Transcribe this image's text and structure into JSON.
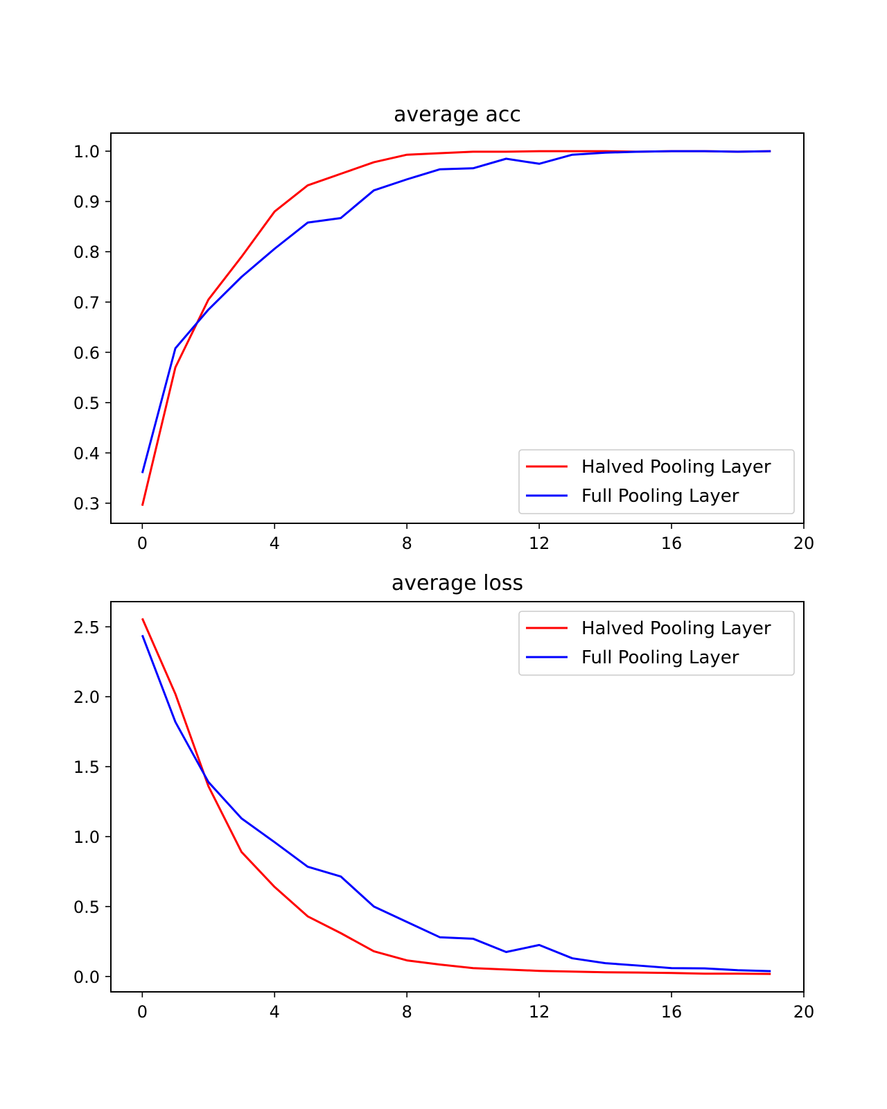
{
  "chart_data": [
    {
      "type": "line",
      "title": "average acc",
      "xlabel": "",
      "ylabel": "",
      "x": [
        0,
        1,
        2,
        3,
        4,
        5,
        6,
        7,
        8,
        9,
        10,
        11,
        12,
        13,
        14,
        15,
        16,
        17,
        18,
        19
      ],
      "xlim": [
        -0.95,
        20
      ],
      "ylim": [
        0.26,
        1.036
      ],
      "xticks": [
        0,
        4,
        8,
        12,
        16,
        20
      ],
      "xtick_labels": [
        "0",
        "4",
        "8",
        "12",
        "16",
        "20"
      ],
      "yticks": [
        0.3,
        0.4,
        0.5,
        0.6,
        0.7,
        0.8,
        0.9,
        1.0
      ],
      "ytick_labels": [
        "0.3",
        "0.4",
        "0.5",
        "0.6",
        "0.7",
        "0.8",
        "0.9",
        "1.0"
      ],
      "grid": false,
      "legend_position": "lower-right",
      "series": [
        {
          "name": "Halved Pooling Layer",
          "color": "#ff0000",
          "values": [
            0.295,
            0.57,
            0.705,
            0.79,
            0.88,
            0.932,
            0.955,
            0.978,
            0.993,
            0.996,
            0.999,
            0.999,
            1.0,
            1.0,
            1.0,
            0.999,
            1.0,
            1.0,
            0.999,
            1.0
          ]
        },
        {
          "name": "Full Pooling Layer",
          "color": "#0000ff",
          "values": [
            0.36,
            0.608,
            0.685,
            0.75,
            0.806,
            0.858,
            0.867,
            0.922,
            0.944,
            0.964,
            0.966,
            0.985,
            0.975,
            0.993,
            0.997,
            0.999,
            1.0,
            1.0,
            0.999,
            1.0
          ]
        }
      ]
    },
    {
      "type": "line",
      "title": "average loss",
      "xlabel": "",
      "ylabel": "",
      "x": [
        0,
        1,
        2,
        3,
        4,
        5,
        6,
        7,
        8,
        9,
        10,
        11,
        12,
        13,
        14,
        15,
        16,
        17,
        18,
        19
      ],
      "xlim": [
        -0.95,
        20
      ],
      "ylim": [
        -0.11,
        2.68
      ],
      "xticks": [
        0,
        4,
        8,
        12,
        16,
        20
      ],
      "xtick_labels": [
        "0",
        "4",
        "8",
        "12",
        "16",
        "20"
      ],
      "yticks": [
        0.0,
        0.5,
        1.0,
        1.5,
        2.0,
        2.5
      ],
      "ytick_labels": [
        "0.0",
        "0.5",
        "1.0",
        "1.5",
        "2.0",
        "2.5"
      ],
      "grid": false,
      "legend_position": "upper-right",
      "series": [
        {
          "name": "Halved Pooling Layer",
          "color": "#ff0000",
          "values": [
            2.56,
            2.02,
            1.36,
            0.89,
            0.64,
            0.43,
            0.31,
            0.18,
            0.115,
            0.085,
            0.06,
            0.05,
            0.04,
            0.035,
            0.03,
            0.028,
            0.025,
            0.02,
            0.02,
            0.018
          ]
        },
        {
          "name": "Full Pooling Layer",
          "color": "#0000ff",
          "values": [
            2.44,
            1.82,
            1.39,
            1.13,
            0.96,
            0.785,
            0.715,
            0.5,
            0.39,
            0.28,
            0.27,
            0.175,
            0.225,
            0.13,
            0.095,
            0.078,
            0.06,
            0.058,
            0.045,
            0.038
          ]
        }
      ]
    }
  ]
}
